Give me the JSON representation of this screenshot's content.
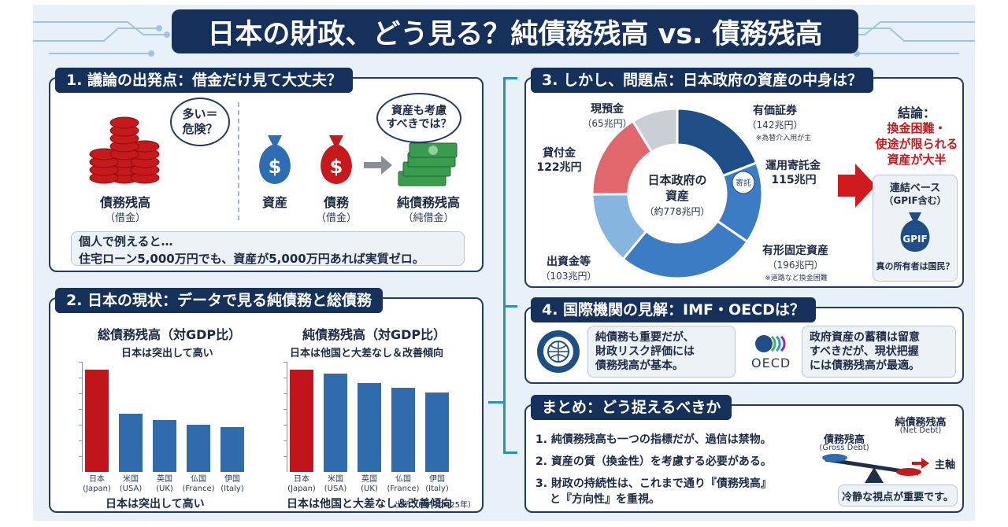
{
  "header": {
    "title": "日本の財政、どう見る？純債務残高 vs. 債務残高"
  },
  "sec1": {
    "title": "1. 議論の出発点：借金だけ見て大丈夫？",
    "bubble1": "多い＝\n危険？",
    "bubble2": "資産も考慮\nすべきでは？",
    "debt_label": "債務残高",
    "debt_sub": "（借金）",
    "asset_label": "資産",
    "liab_label": "債務",
    "liab_sub": "（借金）",
    "net_label": "純債務残高",
    "net_sub": "（純借金）",
    "bag_symbol": "$",
    "example_line1": "個人で例えると…",
    "example_line2": "住宅ローン5,000万円でも、資産が5,000万円あれば実質ゼロ。"
  },
  "sec2": {
    "title": "2. 日本の現状：データで見る純債務と総債務",
    "source": "出所：IMF（2025年）"
  },
  "chart_data": [
    {
      "type": "bar",
      "title": "総債務残高（対GDP比）",
      "annotation": "日本は突出して高い",
      "caption": "日本は突出して高い",
      "categories": [
        "日本\n(Japan)",
        "米国\n(USA)",
        "英国\n(UK)",
        "仏国\n(France)",
        "伊国\n(Italy)"
      ],
      "values": [
        100,
        57,
        51,
        46,
        44
      ],
      "highlight_index": 0,
      "colors": {
        "highlight": "#c0161b",
        "normal": "#2f6bad"
      }
    },
    {
      "type": "bar",
      "title": "純債務残高（対GDP比）",
      "annotation": "日本は他国と大差なし＆改善傾向",
      "caption": "日本は他国と大差なし＆改善傾向",
      "categories": [
        "日本\n(Japan)",
        "米国\n(USA)",
        "英国\n(UK)",
        "仏国\n(France)",
        "伊国\n(Italy)"
      ],
      "values": [
        100,
        96,
        87,
        82,
        78
      ],
      "highlight_index": 0,
      "colors": {
        "highlight": "#c0161b",
        "normal": "#2f6bad"
      }
    }
  ],
  "sec3": {
    "title": "3. しかし、問題点：日本政府の資産の中身は？",
    "center_line1": "日本政府の",
    "center_line2": "資産",
    "center_line3": "（約778兆円）",
    "seg_cash": "現預金",
    "seg_cash_val": "（65兆円）",
    "seg_loans": "貸付金",
    "seg_loans_val": "122兆円",
    "seg_invest": "出資金等",
    "seg_invest_val": "（103兆円）",
    "seg_fixed": "有形固定資産",
    "seg_fixed_val": "（196兆円）",
    "seg_fixed_note": "※道路など換金困難",
    "seg_trust": "運用寄託金",
    "seg_trust_val": "115兆円",
    "seg_trust_icon": "寄託",
    "seg_sec": "有価証券",
    "seg_sec_val": "（142兆円）",
    "seg_sec_note": "※為替介入用が主",
    "conclusion_head": "結論：",
    "conclusion_1": "換金困難・",
    "conclusion_2": "使途が限られる",
    "conclusion_3": "資産が大半",
    "gpif_1": "連結ベース",
    "gpif_2": "（GPIF含む）",
    "gpif_logo": "GPIF",
    "gpif_q": "真の所有者は国民？",
    "colors": {
      "navy": "#1f4e86",
      "blue": "#3c7cc4",
      "light": "#86b6df",
      "red": "#e1676c",
      "gray": "#c9ced4"
    }
  },
  "sec4": {
    "title": "4. 国際機関の見解：IMF・OECDは？",
    "imf_text": "純債務も重要だが、\n財政リスク評価には\n債務残高が基本。",
    "oecd_text": "政府資産の蓄積は留意\nすべきだが、現状把握\nには債務残高が最適。",
    "oecd_logo": "OECD"
  },
  "sec5": {
    "title": "まとめ：どう捉えるべきか",
    "item1": "1. 純債務残高も一つの指標だが、過信は禁物。",
    "item2": "2. 資産の質（換金性）を考慮する必要がある。",
    "item3a": "3. 財政の持続性は、これまで通り『債務残高』",
    "item3b": "と『方向性』を重視。",
    "left_label": "債務残高",
    "left_en": "(Gross Debt)",
    "right_label": "純債務残高",
    "right_en": "(Net Debt)",
    "axis_label": "主軸",
    "note": "冷静な視点が重要です。"
  }
}
